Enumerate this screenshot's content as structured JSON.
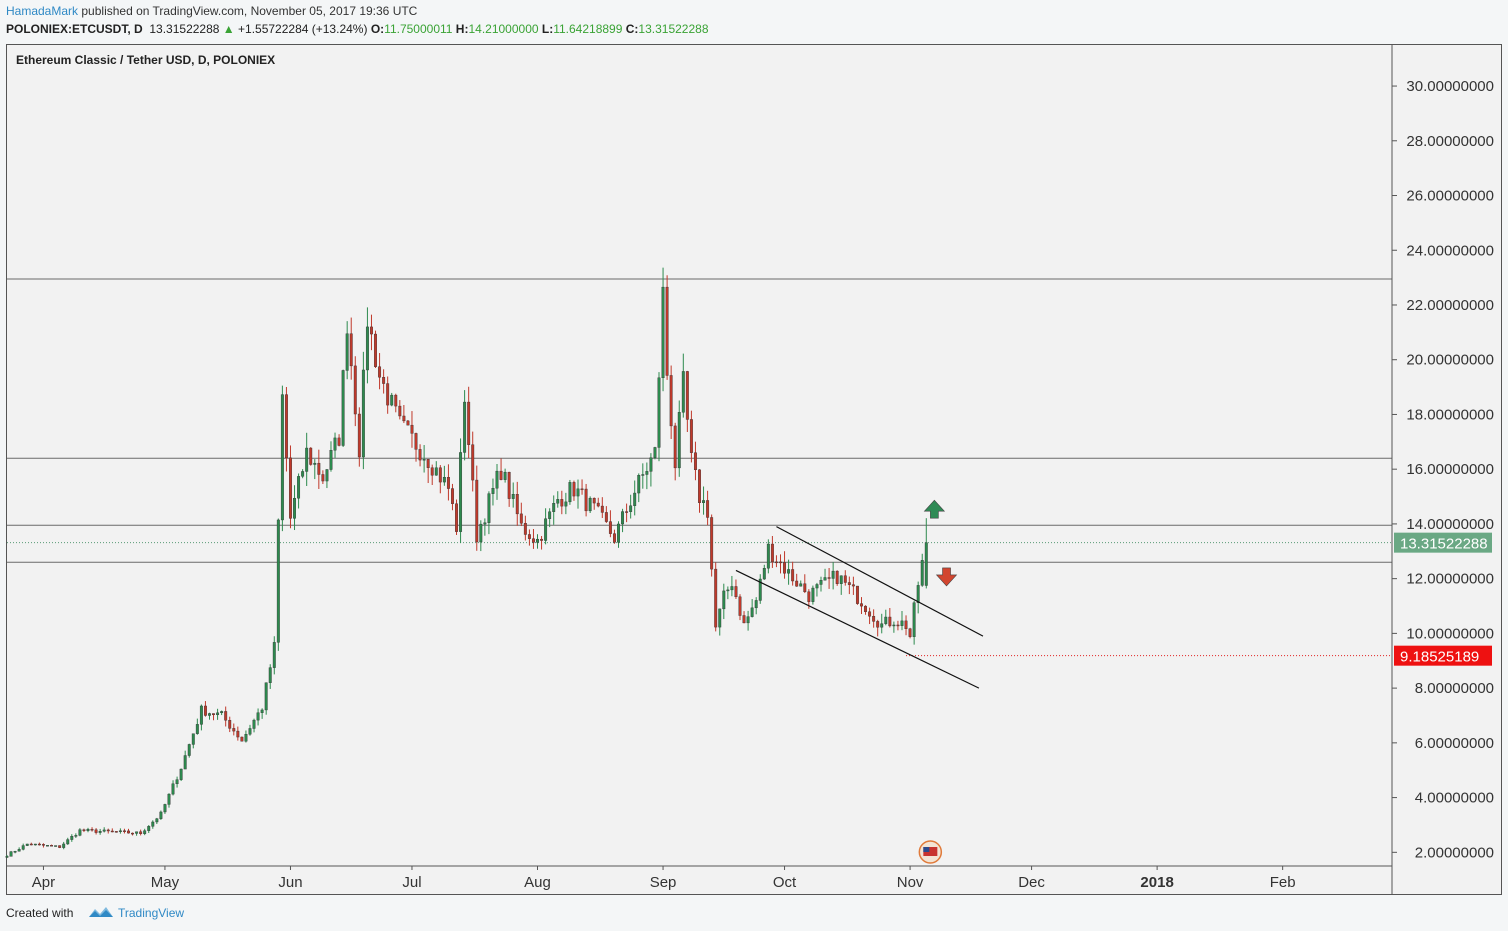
{
  "header": {
    "author": "HamadaMark",
    "published_text": "published on TradingView.com, November 05, 2017 19:36 UTC",
    "symbol": "POLONIEX:ETCUSDT, D",
    "last_price": "13.31522288",
    "change_arrow": "▲",
    "change": "+1.55722284 (+13.24%)",
    "o_label": "O:",
    "o_value": "11.75000011",
    "h_label": "H:",
    "h_value": "14.21000000",
    "l_label": "L:",
    "l_value": "11.64218899",
    "c_label": "C:",
    "c_value": "13.31522288"
  },
  "chart_title": "Ethereum Classic / Tether USD, D, POLONIEX",
  "footer": {
    "created_with": "Created with",
    "brand": "TradingView"
  },
  "colors": {
    "up": "#2d8a4e",
    "down": "#c0392b",
    "current_price_bg": "#6aa884",
    "stop_price_bg": "#ee1111",
    "brand": "#2f89c5"
  },
  "chart_data": {
    "type": "candlestick",
    "ylim": [
      1.5,
      31.5
    ],
    "y_ticks": [
      "30.00000000",
      "28.00000000",
      "26.00000000",
      "24.00000000",
      "22.00000000",
      "20.00000000",
      "18.00000000",
      "16.00000000",
      "14.00000000",
      "12.00000000",
      "10.00000000",
      "8.00000000",
      "6.00000000",
      "4.00000000",
      "2.00000000"
    ],
    "x_range": [
      "2017-03-23",
      "2018-02-28"
    ],
    "x_ticks": [
      {
        "label": "Apr",
        "date": "2017-04-01",
        "bold": false
      },
      {
        "label": "May",
        "date": "2017-05-01",
        "bold": false
      },
      {
        "label": "Jun",
        "date": "2017-06-01",
        "bold": false
      },
      {
        "label": "Jul",
        "date": "2017-07-01",
        "bold": false
      },
      {
        "label": "Aug",
        "date": "2017-08-01",
        "bold": false
      },
      {
        "label": "Sep",
        "date": "2017-09-01",
        "bold": false
      },
      {
        "label": "Oct",
        "date": "2017-10-01",
        "bold": false
      },
      {
        "label": "Nov",
        "date": "2017-11-01",
        "bold": false
      },
      {
        "label": "Dec",
        "date": "2017-12-01",
        "bold": false
      },
      {
        "label": "2018",
        "date": "2018-01-01",
        "bold": true
      },
      {
        "label": "Feb",
        "date": "2018-02-01",
        "bold": false
      }
    ],
    "anchors": [
      {
        "date": "2017-03-23",
        "price": 1.9
      },
      {
        "date": "2017-03-28",
        "price": 2.3
      },
      {
        "date": "2017-04-05",
        "price": 2.2
      },
      {
        "date": "2017-04-10",
        "price": 2.8
      },
      {
        "date": "2017-04-25",
        "price": 2.7
      },
      {
        "date": "2017-04-30",
        "price": 3.4
      },
      {
        "date": "2017-05-05",
        "price": 5.1
      },
      {
        "date": "2017-05-10",
        "price": 7.2
      },
      {
        "date": "2017-05-15",
        "price": 7.0
      },
      {
        "date": "2017-05-20",
        "price": 6.1
      },
      {
        "date": "2017-05-25",
        "price": 7.3
      },
      {
        "date": "2017-05-28",
        "price": 9.5
      },
      {
        "date": "2017-05-30",
        "price": 18.6
      },
      {
        "date": "2017-06-01",
        "price": 14.2
      },
      {
        "date": "2017-06-05",
        "price": 16.6
      },
      {
        "date": "2017-06-09",
        "price": 15.7
      },
      {
        "date": "2017-06-13",
        "price": 17.2
      },
      {
        "date": "2017-06-15",
        "price": 21.4
      },
      {
        "date": "2017-06-18",
        "price": 16.8
      },
      {
        "date": "2017-06-20",
        "price": 21.5
      },
      {
        "date": "2017-06-23",
        "price": 19.4
      },
      {
        "date": "2017-06-28",
        "price": 17.6
      },
      {
        "date": "2017-07-05",
        "price": 16.4
      },
      {
        "date": "2017-07-10",
        "price": 15.3
      },
      {
        "date": "2017-07-12",
        "price": 13.9
      },
      {
        "date": "2017-07-14",
        "price": 18.7
      },
      {
        "date": "2017-07-17",
        "price": 13.6
      },
      {
        "date": "2017-07-20",
        "price": 14.8
      },
      {
        "date": "2017-07-23",
        "price": 16.0
      },
      {
        "date": "2017-07-28",
        "price": 13.9
      },
      {
        "date": "2017-08-01",
        "price": 13.4
      },
      {
        "date": "2017-08-06",
        "price": 14.9
      },
      {
        "date": "2017-08-10",
        "price": 15.3
      },
      {
        "date": "2017-08-15",
        "price": 14.5
      },
      {
        "date": "2017-08-20",
        "price": 13.5
      },
      {
        "date": "2017-08-25",
        "price": 15.2
      },
      {
        "date": "2017-08-30",
        "price": 16.6
      },
      {
        "date": "2017-09-01",
        "price": 22.4
      },
      {
        "date": "2017-09-02",
        "price": 19.5
      },
      {
        "date": "2017-09-04",
        "price": 16.2
      },
      {
        "date": "2017-09-06",
        "price": 19.1
      },
      {
        "date": "2017-09-08",
        "price": 16.3
      },
      {
        "date": "2017-09-10",
        "price": 15.0
      },
      {
        "date": "2017-09-12",
        "price": 14.5
      },
      {
        "date": "2017-09-14",
        "price": 10.2
      },
      {
        "date": "2017-09-16",
        "price": 11.3
      },
      {
        "date": "2017-09-18",
        "price": 11.9
      },
      {
        "date": "2017-09-21",
        "price": 10.3
      },
      {
        "date": "2017-09-24",
        "price": 11.2
      },
      {
        "date": "2017-09-27",
        "price": 13.1
      },
      {
        "date": "2017-10-02",
        "price": 12.2
      },
      {
        "date": "2017-10-07",
        "price": 11.4
      },
      {
        "date": "2017-10-14",
        "price": 12.1
      },
      {
        "date": "2017-10-20",
        "price": 11.2
      },
      {
        "date": "2017-10-25",
        "price": 10.3
      },
      {
        "date": "2017-10-28",
        "price": 10.5
      },
      {
        "date": "2017-10-31",
        "price": 10.3
      },
      {
        "date": "2017-11-01",
        "price": 9.9
      },
      {
        "date": "2017-11-03",
        "price": 11.8
      },
      {
        "date": "2017-11-05",
        "price": 13.32
      }
    ],
    "last_candle": {
      "date": "2017-11-05",
      "open": 11.75000011,
      "high": 14.21,
      "low": 11.64218899,
      "close": 13.31522288
    },
    "horizontal_lines": [
      22.95,
      16.4,
      13.95,
      12.6
    ],
    "current_price": 13.31522288,
    "current_price_label": "13.31522288",
    "stop_price": 9.18525189,
    "stop_price_label": "9.18525189",
    "channel_upper": [
      {
        "date": "2017-09-29",
        "price": 13.9
      },
      {
        "date": "2017-11-19",
        "price": 9.9
      }
    ],
    "channel_lower": [
      {
        "date": "2017-09-19",
        "price": 12.3
      },
      {
        "date": "2017-11-18",
        "price": 8.0
      }
    ],
    "arrows": [
      {
        "direction": "up",
        "date": "2017-11-07",
        "price": 14.5
      },
      {
        "direction": "down",
        "date": "2017-11-10",
        "price": 12.1
      }
    ]
  }
}
